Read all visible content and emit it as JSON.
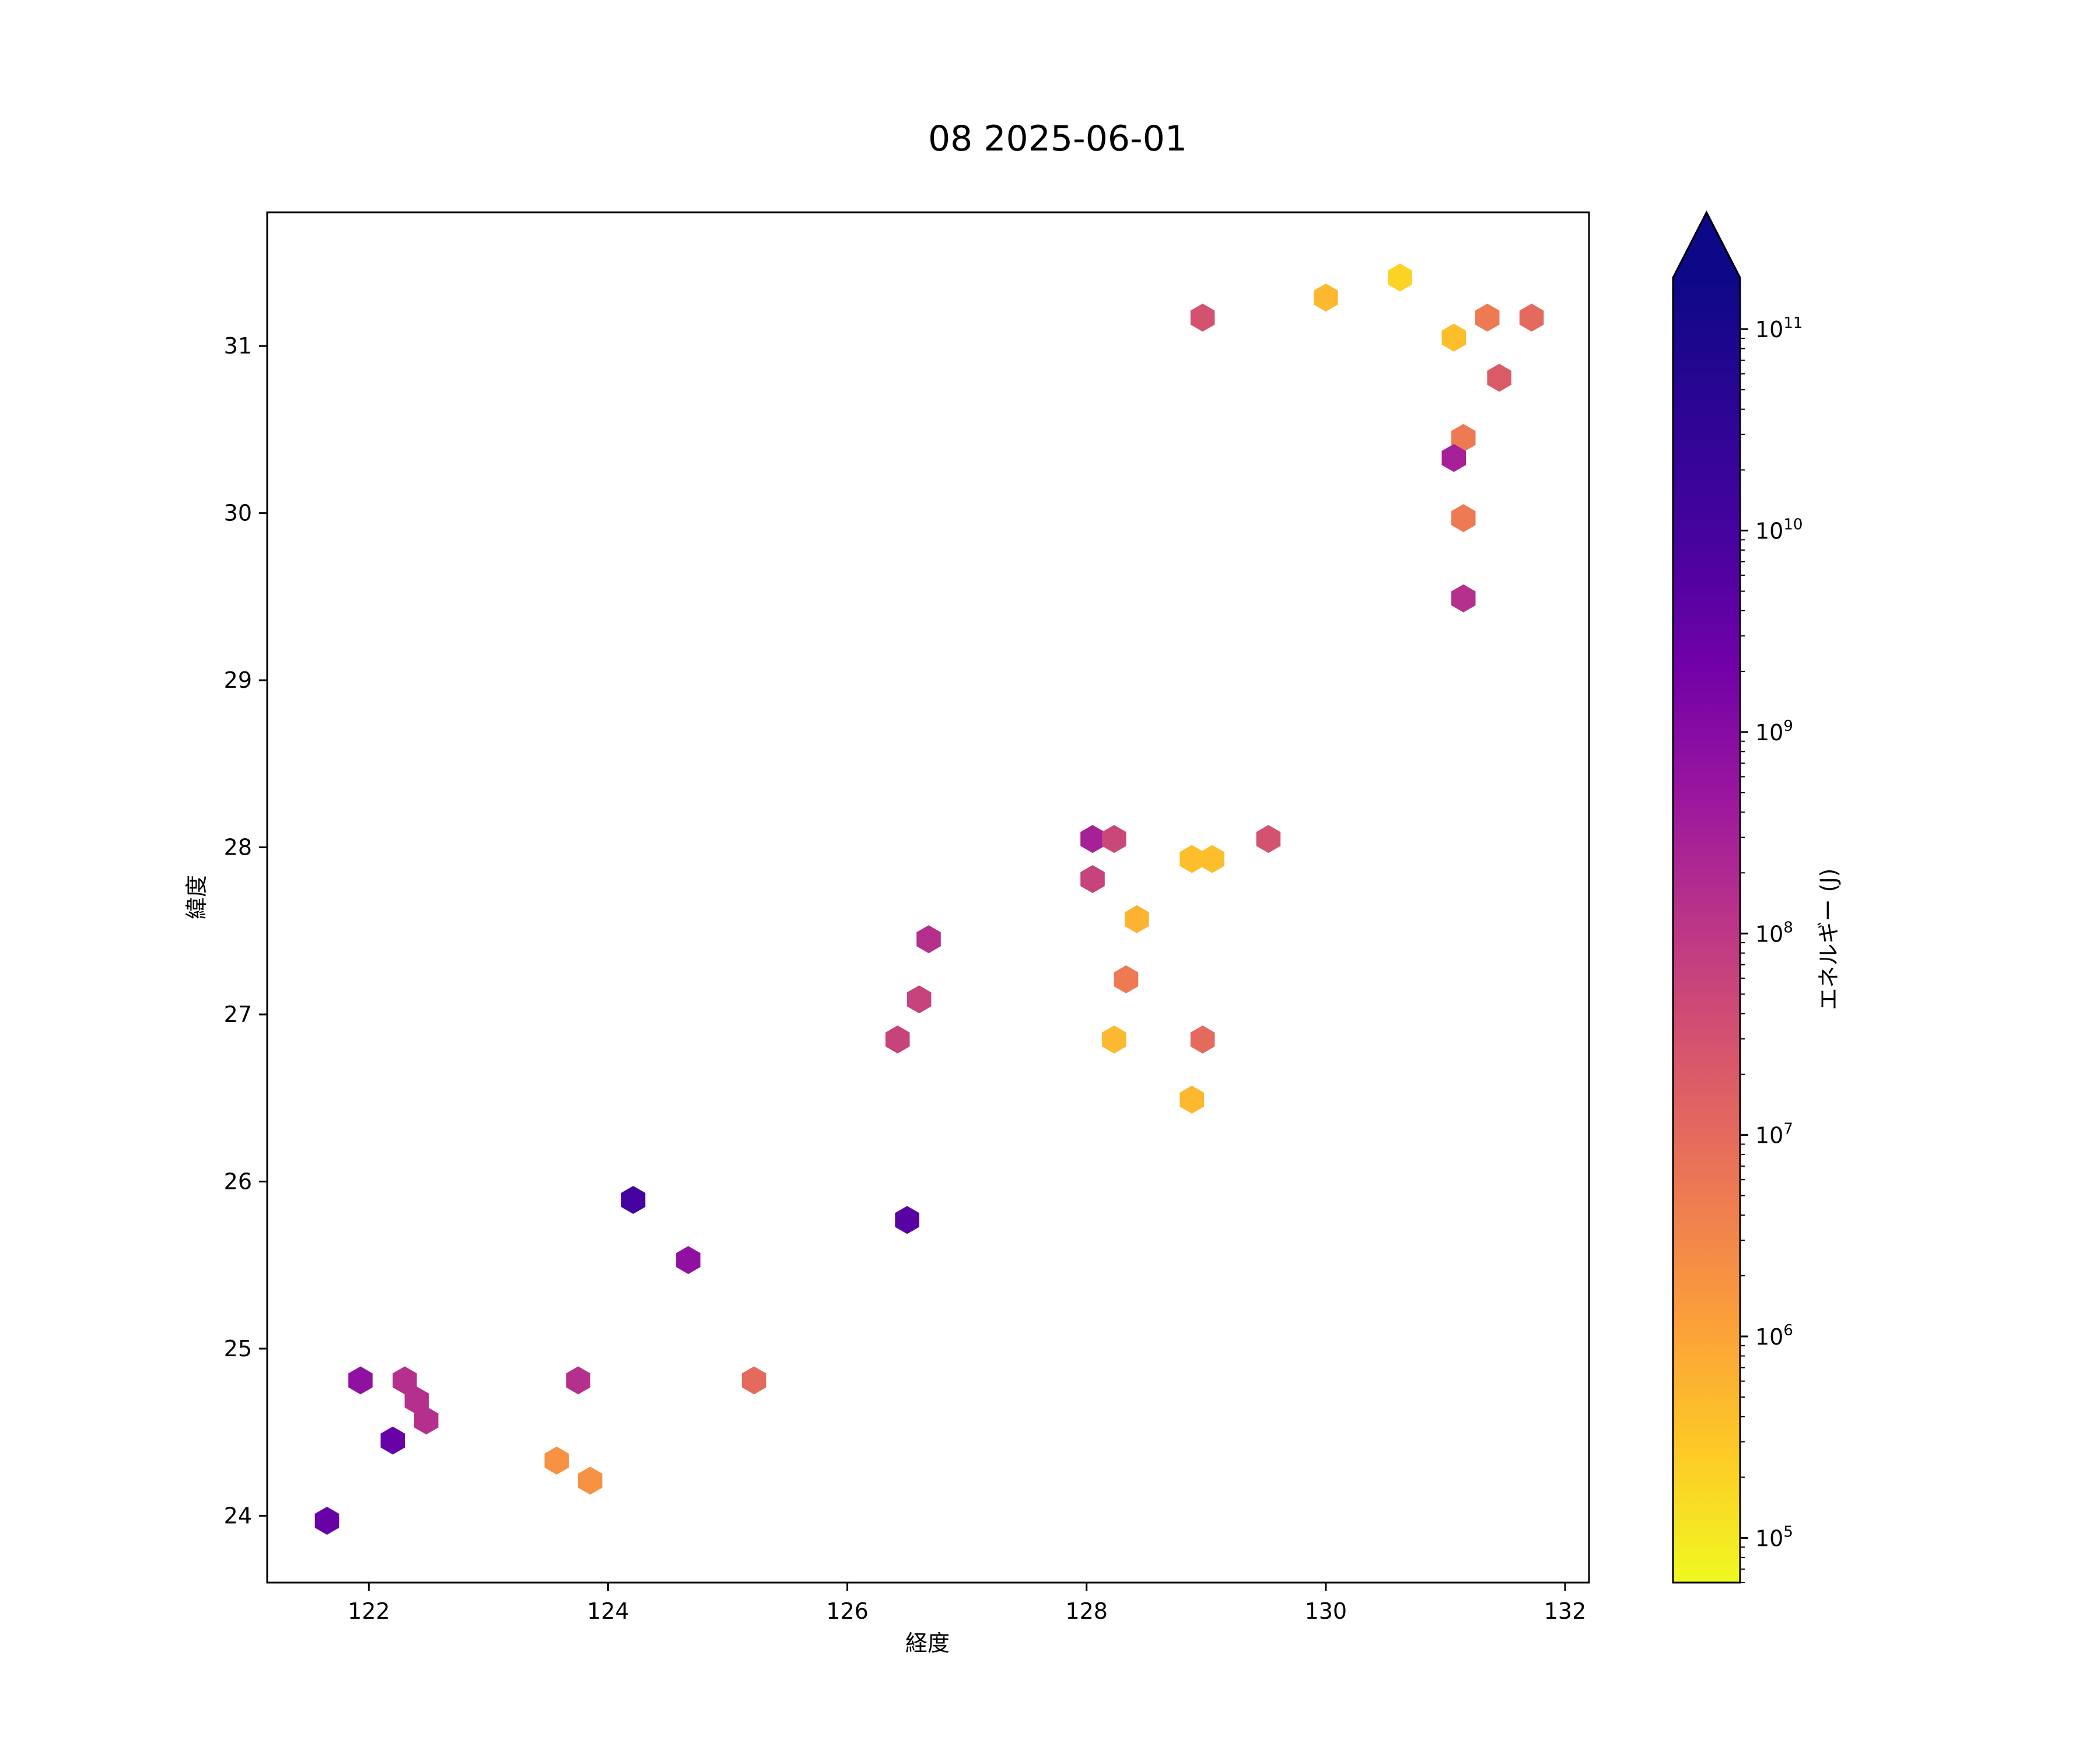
{
  "chart_data": {
    "type": "hexbin",
    "title": "08 2025-06-01",
    "xlabel": "経度",
    "ylabel": "緯度",
    "xlim": [
      121.15,
      132.2
    ],
    "ylim": [
      23.6,
      31.8
    ],
    "xticks": [
      122,
      124,
      126,
      128,
      130,
      132
    ],
    "yticks": [
      24,
      25,
      26,
      27,
      28,
      29,
      30,
      31
    ],
    "grid": false,
    "colorbar": {
      "label": "エネルギー (J)",
      "scale": "log",
      "colormap": "plasma_r",
      "range": [
        60000,
        180000000000
      ],
      "extend": "max",
      "ticks_exponents": [
        5,
        6,
        7,
        8,
        9,
        10,
        11
      ],
      "tick_base": "10"
    },
    "points": [
      {
        "x": 121.65,
        "y": 23.97,
        "value": 3000000000
      },
      {
        "x": 121.93,
        "y": 24.81,
        "value": 700000000
      },
      {
        "x": 122.3,
        "y": 24.81,
        "value": 150000000
      },
      {
        "x": 122.4,
        "y": 24.69,
        "value": 150000000
      },
      {
        "x": 122.48,
        "y": 24.57,
        "value": 150000000
      },
      {
        "x": 122.2,
        "y": 24.45,
        "value": 3000000000
      },
      {
        "x": 123.57,
        "y": 24.33,
        "value": 2000000
      },
      {
        "x": 123.75,
        "y": 24.81,
        "value": 150000000
      },
      {
        "x": 123.85,
        "y": 24.21,
        "value": 2000000
      },
      {
        "x": 124.21,
        "y": 25.89,
        "value": 10000000000
      },
      {
        "x": 124.67,
        "y": 25.53,
        "value": 700000000
      },
      {
        "x": 125.22,
        "y": 24.81,
        "value": 10000000
      },
      {
        "x": 126.42,
        "y": 26.85,
        "value": 60000000
      },
      {
        "x": 126.6,
        "y": 27.09,
        "value": 60000000
      },
      {
        "x": 126.68,
        "y": 27.45,
        "value": 150000000
      },
      {
        "x": 126.5,
        "y": 25.77,
        "value": 5000000000
      },
      {
        "x": 128.05,
        "y": 28.05,
        "value": 300000000
      },
      {
        "x": 128.23,
        "y": 28.05,
        "value": 50000000
      },
      {
        "x": 128.05,
        "y": 27.81,
        "value": 60000000
      },
      {
        "x": 128.42,
        "y": 27.57,
        "value": 600000
      },
      {
        "x": 128.33,
        "y": 27.21,
        "value": 5000000
      },
      {
        "x": 128.23,
        "y": 26.85,
        "value": 500000
      },
      {
        "x": 128.88,
        "y": 27.93,
        "value": 400000
      },
      {
        "x": 129.05,
        "y": 27.93,
        "value": 400000
      },
      {
        "x": 128.97,
        "y": 26.85,
        "value": 10000000
      },
      {
        "x": 128.88,
        "y": 26.49,
        "value": 500000
      },
      {
        "x": 129.52,
        "y": 28.05,
        "value": 30000000
      },
      {
        "x": 128.97,
        "y": 31.17,
        "value": 30000000
      },
      {
        "x": 130.0,
        "y": 31.29,
        "value": 500000
      },
      {
        "x": 130.62,
        "y": 31.41,
        "value": 200000
      },
      {
        "x": 131.07,
        "y": 31.05,
        "value": 400000
      },
      {
        "x": 131.35,
        "y": 31.17,
        "value": 5000000
      },
      {
        "x": 131.72,
        "y": 31.17,
        "value": 10000000
      },
      {
        "x": 131.45,
        "y": 30.81,
        "value": 20000000
      },
      {
        "x": 131.15,
        "y": 30.45,
        "value": 5000000
      },
      {
        "x": 131.07,
        "y": 30.33,
        "value": 300000000
      },
      {
        "x": 131.15,
        "y": 29.97,
        "value": 5000000
      },
      {
        "x": 131.15,
        "y": 29.49,
        "value": 150000000
      }
    ]
  }
}
